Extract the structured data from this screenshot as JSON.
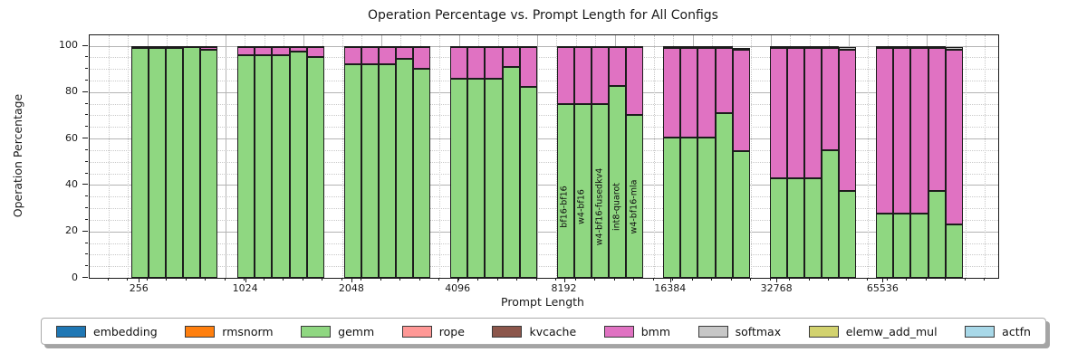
{
  "chart_data": {
    "type": "bar",
    "stacked": true,
    "title": "Operation Percentage vs. Prompt Length for All Configs",
    "xlabel": "Prompt Length",
    "ylabel": "Operation Percentage",
    "ylim": [
      0,
      104.5
    ],
    "y_ticks": [
      0,
      20,
      40,
      60,
      80,
      100
    ],
    "y_minor_step": 5,
    "grid": "major solid + minor dotted, both axes",
    "legend_position": "bottom horizontal",
    "categories": [
      "256",
      "1024",
      "2048",
      "4096",
      "8192",
      "16384",
      "32768",
      "65536"
    ],
    "configs": [
      "bf16-bf16",
      "w4-bf16",
      "w4-bf16-fusedkv4",
      "int8-quarot",
      "w4-bf16-mla"
    ],
    "config_labels_shown_on_category": "8192",
    "segment_order": [
      "gemm",
      "bmm",
      "softmax"
    ],
    "groups": [
      {
        "category": "256",
        "bars": [
          {
            "config": "bf16-bf16",
            "gemm": 99.0,
            "bmm": 0.8,
            "softmax": 0.2
          },
          {
            "config": "w4-bf16",
            "gemm": 99.0,
            "bmm": 0.8,
            "softmax": 0.2
          },
          {
            "config": "w4-bf16-fusedkv4",
            "gemm": 99.0,
            "bmm": 0.8,
            "softmax": 0.2
          },
          {
            "config": "int8-quarot",
            "gemm": 99.3,
            "bmm": 0.5,
            "softmax": 0.2
          },
          {
            "config": "w4-bf16-mla",
            "gemm": 98.4,
            "bmm": 1.3,
            "softmax": 0.2
          }
        ]
      },
      {
        "category": "1024",
        "bars": [
          {
            "config": "bf16-bf16",
            "gemm": 96.0,
            "bmm": 3.7,
            "softmax": 0.3
          },
          {
            "config": "w4-bf16",
            "gemm": 96.0,
            "bmm": 3.7,
            "softmax": 0.3
          },
          {
            "config": "w4-bf16-fusedkv4",
            "gemm": 96.0,
            "bmm": 3.7,
            "softmax": 0.3
          },
          {
            "config": "int8-quarot",
            "gemm": 97.4,
            "bmm": 2.3,
            "softmax": 0.3
          },
          {
            "config": "w4-bf16-mla",
            "gemm": 95.0,
            "bmm": 4.5,
            "softmax": 0.3
          }
        ]
      },
      {
        "category": "2048",
        "bars": [
          {
            "config": "bf16-bf16",
            "gemm": 92.0,
            "bmm": 7.7,
            "softmax": 0.3
          },
          {
            "config": "w4-bf16",
            "gemm": 92.0,
            "bmm": 7.7,
            "softmax": 0.3
          },
          {
            "config": "w4-bf16-fusedkv4",
            "gemm": 92.0,
            "bmm": 7.7,
            "softmax": 0.3
          },
          {
            "config": "int8-quarot",
            "gemm": 94.5,
            "bmm": 5.2,
            "softmax": 0.3
          },
          {
            "config": "w4-bf16-mla",
            "gemm": 90.0,
            "bmm": 9.5,
            "softmax": 0.3
          }
        ]
      },
      {
        "category": "4096",
        "bars": [
          {
            "config": "bf16-bf16",
            "gemm": 85.8,
            "bmm": 13.7,
            "softmax": 0.5
          },
          {
            "config": "w4-bf16",
            "gemm": 85.8,
            "bmm": 13.7,
            "softmax": 0.5
          },
          {
            "config": "w4-bf16-fusedkv4",
            "gemm": 85.8,
            "bmm": 13.7,
            "softmax": 0.5
          },
          {
            "config": "int8-quarot",
            "gemm": 91.0,
            "bmm": 8.5,
            "softmax": 0.5
          },
          {
            "config": "w4-bf16-mla",
            "gemm": 82.3,
            "bmm": 17.0,
            "softmax": 0.5
          }
        ]
      },
      {
        "category": "8192",
        "bars": [
          {
            "config": "bf16-bf16",
            "gemm": 75.0,
            "bmm": 24.5,
            "softmax": 0.5
          },
          {
            "config": "w4-bf16",
            "gemm": 75.0,
            "bmm": 24.5,
            "softmax": 0.5
          },
          {
            "config": "w4-bf16-fusedkv4",
            "gemm": 75.0,
            "bmm": 24.5,
            "softmax": 0.5
          },
          {
            "config": "int8-quarot",
            "gemm": 82.5,
            "bmm": 17.0,
            "softmax": 0.5
          },
          {
            "config": "w4-bf16-mla",
            "gemm": 70.0,
            "bmm": 29.3,
            "softmax": 0.5
          }
        ]
      },
      {
        "category": "16384",
        "bars": [
          {
            "config": "bf16-bf16",
            "gemm": 60.5,
            "bmm": 38.5,
            "softmax": 1.0
          },
          {
            "config": "w4-bf16",
            "gemm": 60.5,
            "bmm": 38.5,
            "softmax": 1.0
          },
          {
            "config": "w4-bf16-fusedkv4",
            "gemm": 60.5,
            "bmm": 38.5,
            "softmax": 1.0
          },
          {
            "config": "int8-quarot",
            "gemm": 71.0,
            "bmm": 28.0,
            "softmax": 1.0
          },
          {
            "config": "w4-bf16-mla",
            "gemm": 54.5,
            "bmm": 43.7,
            "softmax": 1.0
          }
        ]
      },
      {
        "category": "32768",
        "bars": [
          {
            "config": "bf16-bf16",
            "gemm": 43.0,
            "bmm": 56.0,
            "softmax": 1.0
          },
          {
            "config": "w4-bf16",
            "gemm": 43.0,
            "bmm": 56.0,
            "softmax": 1.0
          },
          {
            "config": "w4-bf16-fusedkv4",
            "gemm": 43.0,
            "bmm": 56.0,
            "softmax": 1.0
          },
          {
            "config": "int8-quarot",
            "gemm": 55.0,
            "bmm": 44.0,
            "softmax": 1.0
          },
          {
            "config": "w4-bf16-mla",
            "gemm": 37.5,
            "bmm": 60.8,
            "softmax": 1.0
          }
        ]
      },
      {
        "category": "65536",
        "bars": [
          {
            "config": "bf16-bf16",
            "gemm": 27.5,
            "bmm": 71.5,
            "softmax": 1.0
          },
          {
            "config": "w4-bf16",
            "gemm": 27.5,
            "bmm": 71.5,
            "softmax": 1.0
          },
          {
            "config": "w4-bf16-fusedkv4",
            "gemm": 27.5,
            "bmm": 71.5,
            "softmax": 1.0
          },
          {
            "config": "int8-quarot",
            "gemm": 37.5,
            "bmm": 61.5,
            "softmax": 1.0
          },
          {
            "config": "w4-bf16-mla",
            "gemm": 23.0,
            "bmm": 75.3,
            "softmax": 1.0
          }
        ]
      }
    ]
  },
  "legend": {
    "items": [
      {
        "name": "embedding",
        "color": "#1f77b4"
      },
      {
        "name": "rmsnorm",
        "color": "#ff7f0e"
      },
      {
        "name": "gemm",
        "color": "#8fd781"
      },
      {
        "name": "rope",
        "color": "#ff9896"
      },
      {
        "name": "kvcache",
        "color": "#8c564b"
      },
      {
        "name": "bmm",
        "color": "#e072c2"
      },
      {
        "name": "softmax",
        "color": "#c7c7c7"
      },
      {
        "name": "elemw_add_mul",
        "color": "#d2d26e"
      },
      {
        "name": "actfn",
        "color": "#a8d8e8"
      }
    ]
  }
}
